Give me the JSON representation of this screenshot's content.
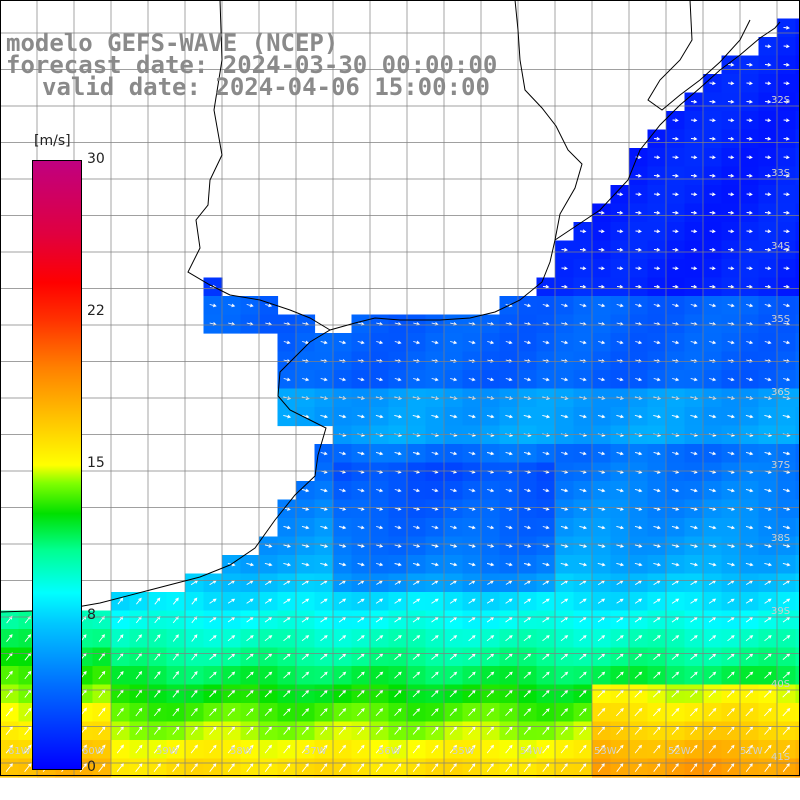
{
  "title": {
    "model": "modelo GEFS-WAVE (NCEP)",
    "forecast": "forecast date: 2024-03-30 00:00:00",
    "valid": "valid date: 2024-04-06 15:00:00"
  },
  "colorbar": {
    "units": "[m/s]",
    "ticks": [
      "30",
      "22",
      "15",
      "8",
      "0"
    ],
    "colors": [
      "#0000ff",
      "#00c8ff",
      "#00ffff",
      "#00e000",
      "#ffff00",
      "#ff8000",
      "#ff0000",
      "#c00080"
    ]
  },
  "lat_labels": [
    "32S",
    "33S",
    "34S",
    "35S",
    "36S",
    "37S",
    "38S",
    "39S",
    "40S",
    "41S"
  ],
  "lon_labels": [
    "61W",
    "60W",
    "59W",
    "58W",
    "57W",
    "56W",
    "55W",
    "54W",
    "53W",
    "52W",
    "51W"
  ],
  "colors": {
    "land": "#ffffff",
    "coast": "#000000",
    "grid": "#808080",
    "arrow": "#ffffff"
  }
}
